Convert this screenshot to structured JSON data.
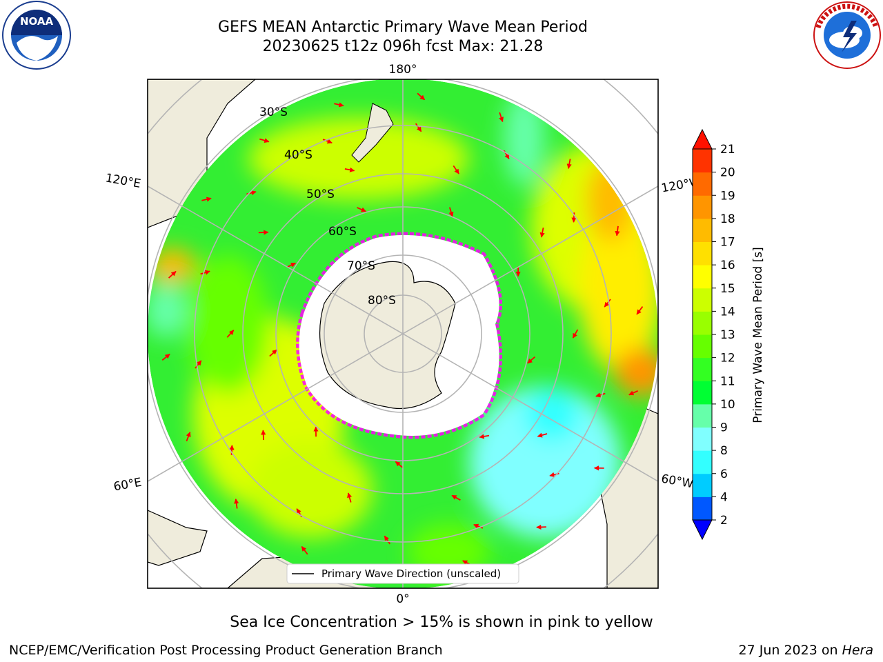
{
  "header": {
    "title_line1": "GEFS MEAN Antarctic Primary Wave Mean Period",
    "title_line2": "20230625 t12z 096h fcst   Max: 21.28"
  },
  "logos": {
    "left": {
      "name": "NOAA",
      "text": "NOAA",
      "ring_text": "NATIONAL OCEANIC AND ATMOSPHERIC ADMINISTRATION · U.S. DEPARTMENT OF COMMERCE"
    },
    "right": {
      "name": "National Weather Service",
      "ring_text": "NATIONAL WEATHER SERVICE"
    }
  },
  "map": {
    "projection": "south-polar-stereographic",
    "longitude_labels": {
      "top": "180°",
      "bottom": "0°",
      "upper_left": "120°E",
      "upper_right": "120°W",
      "lower_left": "60°E",
      "lower_right": "60°W"
    },
    "latitude_labels": [
      "30°S",
      "40°S",
      "50°S",
      "60°S",
      "70°S",
      "80°S"
    ],
    "legend": "Primary Wave Direction (unscaled)",
    "arrow_color": "#ff0000",
    "land_color": "#efecdc",
    "ice_colors": [
      "#ff00ff",
      "#ff8ad0",
      "#ffb060"
    ]
  },
  "colorbar": {
    "label": "Primary Wave Mean Period [s]",
    "ticks": [
      "2",
      "4",
      "6",
      "8",
      "9",
      "10",
      "11",
      "12",
      "13",
      "14",
      "15",
      "16",
      "17",
      "18",
      "19",
      "20",
      "21"
    ],
    "colors": [
      "#0058ff",
      "#00ccff",
      "#33ffff",
      "#80ffff",
      "#66ffaa",
      "#00ff33",
      "#33ff22",
      "#66ff00",
      "#99ff00",
      "#ccff00",
      "#ffff00",
      "#ffe000",
      "#ffbb00",
      "#ff9500",
      "#ff6a00",
      "#ff3300"
    ],
    "extend_low_color": "#0000ff",
    "extend_high_color": "#ff1100"
  },
  "footer": {
    "caption": "Sea Ice Concentration > 15% is shown in pink to yellow",
    "left": "NCEP/EMC/Verification Post Processing Product Generation Branch",
    "right_prefix": "27 Jun 2023 on ",
    "right_host": "Hera"
  }
}
